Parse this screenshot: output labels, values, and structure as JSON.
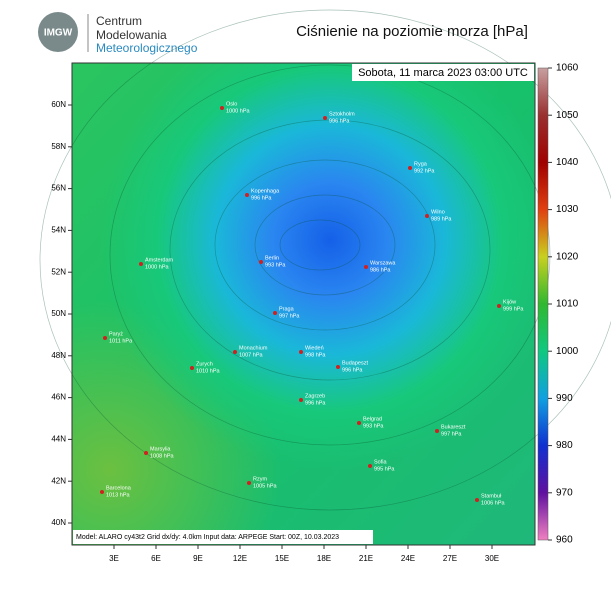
{
  "header": {
    "logo": "IMGW",
    "org_lines": [
      "Centrum",
      "Modelowania",
      "Meteorologicznego"
    ],
    "title": "Ciśnienie na poziomie morza [hPa]"
  },
  "map": {
    "valid_time": "Sobota, 11 marca 2023 03:00 UTC",
    "footer": "Model: ALARO cy43t2  Grid dx/dy: 4.0km  Input data: ARPEGE  Start: 00Z, 10.03.2023",
    "lat_labels": [
      "60N",
      "58N",
      "56N",
      "54N",
      "52N",
      "50N",
      "48N",
      "46N",
      "44N",
      "42N",
      "40N"
    ],
    "lon_labels": [
      "3E",
      "6E",
      "9E",
      "12E",
      "15E",
      "18E",
      "21E",
      "24E",
      "27E",
      "30E"
    ],
    "cities": [
      {
        "name": "Oslo",
        "label": "1000 hPa"
      },
      {
        "name": "Sztokholm",
        "label": "996 hPa"
      },
      {
        "name": "Kopenhaga",
        "label": "996 hPa"
      },
      {
        "name": "Ryga",
        "label": "992 hPa"
      },
      {
        "name": "Wilno",
        "label": "989 hPa"
      },
      {
        "name": "Amsterdam",
        "label": "1000 hPa"
      },
      {
        "name": "Berlin",
        "label": "993 hPa"
      },
      {
        "name": "Warszawa",
        "label": "986 hPa"
      },
      {
        "name": "Kijów",
        "label": "999 hPa"
      },
      {
        "name": "Praga",
        "label": "997 hPa"
      },
      {
        "name": "Paryż",
        "label": "1011 hPa"
      },
      {
        "name": "Monachium",
        "label": "1007 hPa"
      },
      {
        "name": "Wiedeń",
        "label": "998 hPa"
      },
      {
        "name": "Zurych",
        "label": "1010 hPa"
      },
      {
        "name": "Budapeszt",
        "label": "996 hPa"
      },
      {
        "name": "Zagrzeb",
        "label": "996 hPa"
      },
      {
        "name": "Belgrad",
        "label": "993 hPa"
      },
      {
        "name": "Bukareszt",
        "label": "997 hPa"
      },
      {
        "name": "Marsylia",
        "label": "1008 hPa"
      },
      {
        "name": "Sofia",
        "label": "995 hPa"
      },
      {
        "name": "Rzym",
        "label": "1005 hPa"
      },
      {
        "name": "Barcelona",
        "label": "1013 hPa"
      },
      {
        "name": "Stambuł",
        "label": "1006 hPa"
      }
    ]
  },
  "colorbar": {
    "ticks": [
      1060,
      1050,
      1040,
      1030,
      1020,
      1010,
      1000,
      990,
      980,
      970,
      960
    ]
  }
}
